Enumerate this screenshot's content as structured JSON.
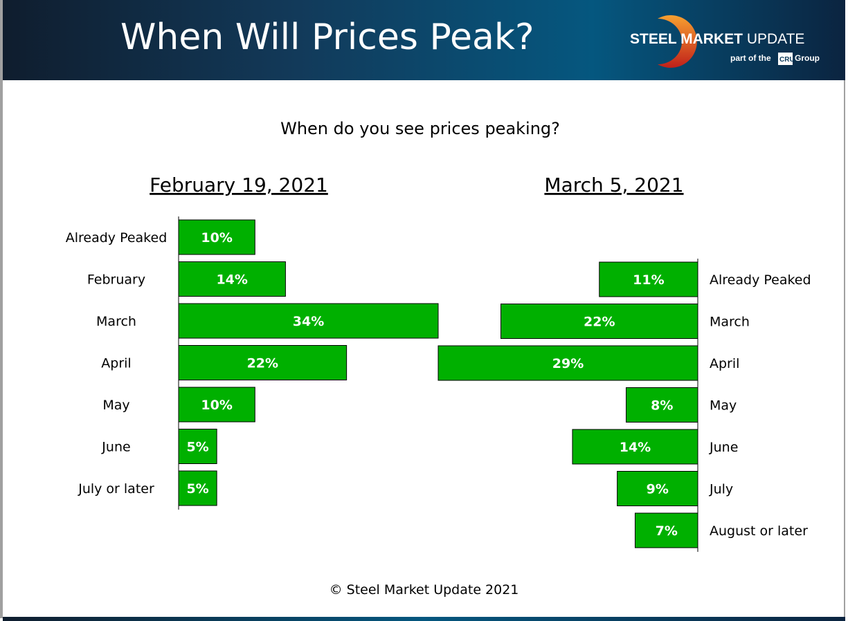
{
  "header": {
    "title": "When Will Prices Peak?",
    "logo": {
      "brand_bold": "STEEL MARKET",
      "brand_light": "UPDATE",
      "tagline_pre": "part of the",
      "tagline_mark": "CRU",
      "tagline_post": "Group"
    }
  },
  "footer": "© Steel Market Update 2021",
  "colors": {
    "bar": "#00b000",
    "header": "#0b3a5c"
  },
  "chart_data": [
    {
      "type": "bar",
      "orientation": "horizontal",
      "title": "When do you see prices peaking?",
      "subtitle": "February 19, 2021",
      "categories": [
        "Already Peaked",
        "February",
        "March",
        "April",
        "May",
        "June",
        "July or later"
      ],
      "values": [
        10,
        14,
        34,
        22,
        10,
        5,
        5
      ],
      "unit": "%",
      "direction": "right",
      "label_side": "left"
    },
    {
      "type": "bar",
      "orientation": "horizontal",
      "subtitle": "March 5, 2021",
      "categories": [
        "Already Peaked",
        "March",
        "April",
        "May",
        "June",
        "July",
        "August or later"
      ],
      "values": [
        11,
        22,
        29,
        8,
        14,
        9,
        7
      ],
      "unit": "%",
      "direction": "left",
      "label_side": "right"
    }
  ]
}
